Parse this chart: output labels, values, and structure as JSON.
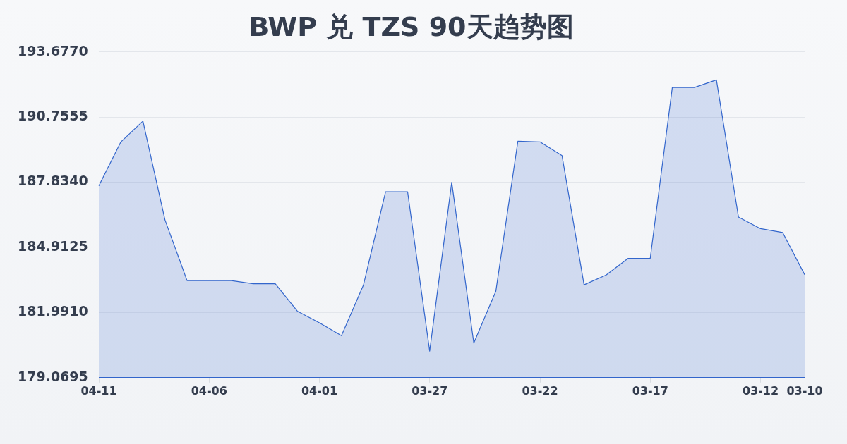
{
  "chart_data": {
    "type": "area",
    "title": "BWP 兑 TZS 90天趋势图",
    "categories": [
      "04-11",
      null,
      null,
      null,
      null,
      "04-06",
      null,
      null,
      null,
      null,
      "04-01",
      null,
      null,
      null,
      null,
      "03-27",
      null,
      null,
      null,
      null,
      "03-22",
      null,
      null,
      null,
      null,
      "03-17",
      null,
      null,
      null,
      null,
      "03-12",
      null,
      "03-10"
    ],
    "values": [
      187.67,
      189.64,
      190.57,
      186.14,
      183.42,
      183.42,
      183.42,
      183.28,
      183.28,
      182.05,
      181.53,
      180.95,
      183.23,
      187.4,
      187.4,
      180.26,
      187.83,
      180.62,
      182.94,
      189.67,
      189.64,
      189.03,
      183.23,
      183.67,
      184.42,
      184.42,
      192.08,
      192.08,
      192.42,
      186.27,
      185.75,
      185.58,
      183.69
    ],
    "color": "#3366cc",
    "ylim": [
      179.0695,
      193.677
    ],
    "yticks": [
      179.0695,
      {
        "value": 181.991,
        "label": "181.9910"
      },
      184.9125,
      {
        "value": 187.834,
        "label": "187.8340"
      },
      190.7555,
      {
        "value": 193.677,
        "label": "193.6770"
      }
    ],
    "grid": "y",
    "marker": "none",
    "line_style": "solid"
  }
}
